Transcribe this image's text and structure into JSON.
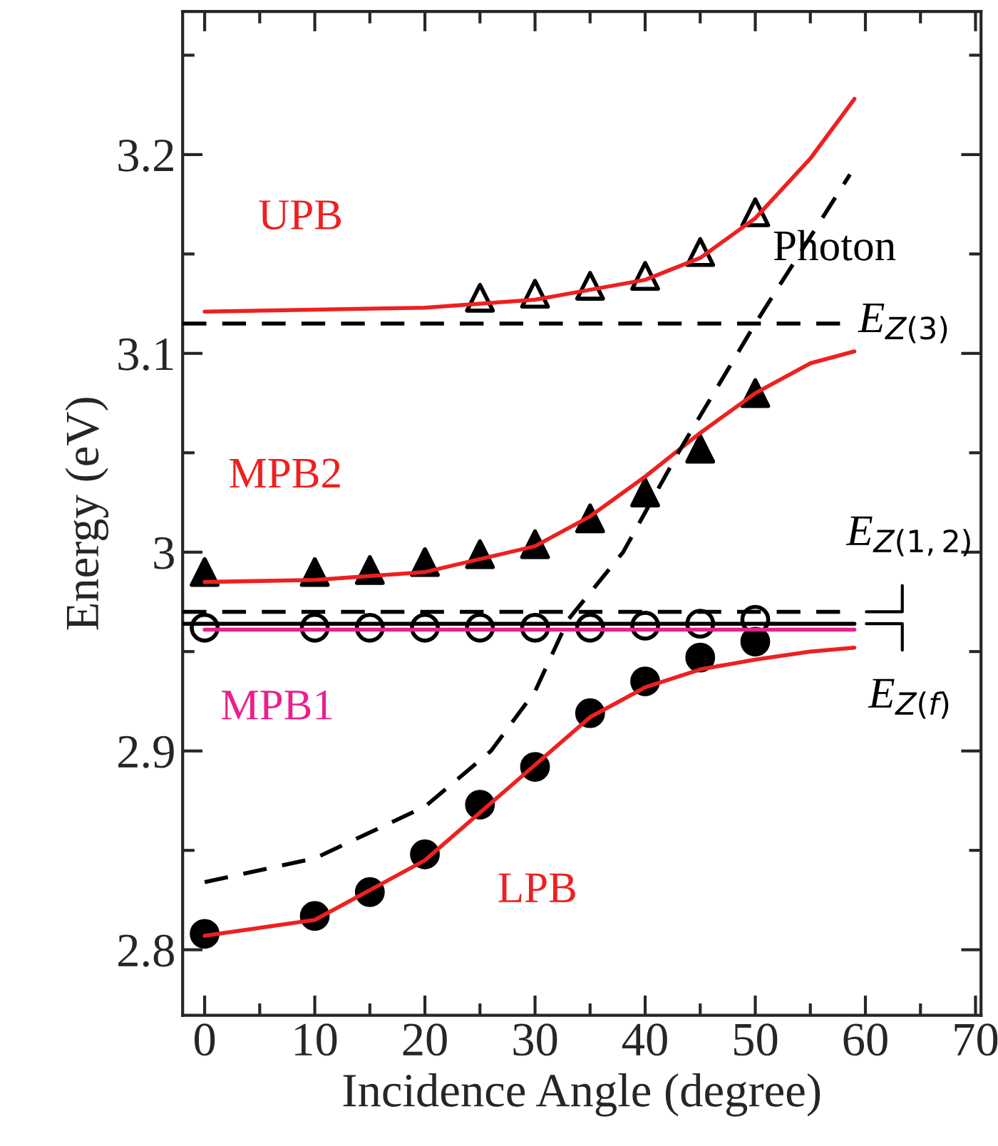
{
  "chart_data": {
    "type": "line",
    "xlabel": "Incidence Angle (degree)",
    "ylabel": "Energy (eV)",
    "xlim": [
      -2,
      70.5
    ],
    "ylim": [
      2.767,
      3.272
    ],
    "xticks": [
      0,
      10,
      20,
      30,
      40,
      50,
      60,
      70
    ],
    "yticks": [
      2.8,
      2.9,
      {
        "value": 3.0,
        "label": "3"
      },
      3.1,
      3.2
    ],
    "grid": false,
    "legend": false,
    "series": [
      {
        "name": "UPB",
        "color": "#ee2020",
        "x": [
          0,
          10,
          20,
          30,
          40,
          45,
          50,
          55,
          59
        ],
        "values": [
          3.121,
          3.122,
          3.123,
          3.127,
          3.137,
          3.148,
          3.168,
          3.198,
          3.228
        ]
      },
      {
        "type": "scatter",
        "marker": "triangle",
        "color": "#000000",
        "x": [
          25,
          30,
          35,
          40,
          45,
          50
        ],
        "values": [
          3.128,
          3.13,
          3.134,
          3.139,
          3.151,
          3.171
        ]
      },
      {
        "name": "MPB2",
        "color": "#ee2020",
        "x": [
          0,
          10,
          20,
          30,
          35,
          40,
          45,
          50,
          55,
          59
        ],
        "values": [
          2.985,
          2.986,
          2.99,
          3.003,
          3.018,
          3.038,
          3.06,
          3.08,
          3.095,
          3.101
        ]
      },
      {
        "type": "scatter",
        "marker": "triangle",
        "color": "#000000",
        "x": [
          0,
          10,
          15,
          20,
          25,
          30,
          35,
          40,
          45,
          50
        ],
        "values": [
          2.99,
          2.99,
          2.991,
          2.995,
          2.999,
          3.004,
          3.017,
          3.03,
          3.052,
          3.08
        ]
      },
      {
        "name": "MPB1",
        "color": "#e8208c",
        "x": [
          0,
          59
        ],
        "values": [
          2.961,
          2.961
        ]
      },
      {
        "type": "scatter",
        "marker": "circle",
        "color": "#000000",
        "x": [
          0,
          10,
          15,
          20,
          25,
          30,
          35,
          40,
          45,
          50
        ],
        "values": [
          2.962,
          2.962,
          2.962,
          2.962,
          2.962,
          2.962,
          2.962,
          2.963,
          2.964,
          2.966
        ]
      },
      {
        "name": "LPB",
        "color": "#ee2020",
        "x": [
          0,
          10,
          20,
          30,
          35,
          40,
          45,
          50,
          55,
          59
        ],
        "values": [
          2.807,
          2.815,
          2.845,
          2.893,
          2.917,
          2.932,
          2.941,
          2.946,
          2.95,
          2.952
        ]
      },
      {
        "type": "scatter",
        "marker": "circle",
        "color": "#000000",
        "x": [
          0,
          10,
          15,
          20,
          25,
          30,
          35,
          40,
          45,
          50
        ],
        "values": [
          2.808,
          2.817,
          2.829,
          2.848,
          2.873,
          2.892,
          2.919,
          2.935,
          2.947,
          2.955
        ]
      },
      {
        "name": "Photon",
        "line_style": "dashed",
        "color": "#000000",
        "x": [
          0,
          10,
          20,
          26,
          30,
          33,
          38,
          43,
          50,
          58.6
        ],
        "values": [
          2.834,
          2.846,
          2.872,
          2.9,
          2.93,
          2.966,
          3.0,
          3.05,
          3.115,
          3.19
        ]
      }
    ],
    "ref_lines": [
      {
        "axis": "y",
        "value": 3.115,
        "label": "E$_{Z(3)}$",
        "color": "#000000",
        "line_style": "dashed"
      },
      {
        "axis": "y",
        "value": 2.97,
        "label": "E$_{Z(1,2)}$",
        "color": "#000000",
        "line_style": "dashed"
      },
      {
        "axis": "y",
        "value": 2.964,
        "label": "E$_{Z(f)}$",
        "color": "#000000",
        "line_style": "solid"
      }
    ]
  }
}
